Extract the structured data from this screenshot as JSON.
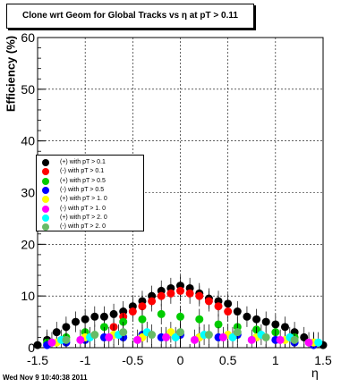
{
  "timestamp": "Wed Nov  9 10:40:38 2011",
  "chart_data": {
    "type": "scatter",
    "title": "Clone wrt Geom for Global Tracks vs   η at pT > 0.11",
    "xlabel": "η",
    "ylabel": "Efficiency (%)",
    "xlim": [
      -1.5,
      1.5
    ],
    "ylim": [
      0,
      60
    ],
    "xticks": [
      "-1.5",
      "-1",
      "-0.5",
      "0",
      "0.5",
      "1",
      "1.5"
    ],
    "yticks": [
      "0",
      "10",
      "20",
      "30",
      "40",
      "50",
      "60"
    ],
    "grid": true,
    "legend_position": "left-middle",
    "series": [
      {
        "name": "(+) with pT > 0.1",
        "color": "#000000",
        "x": [
          -1.5,
          -1.4,
          -1.3,
          -1.2,
          -1.1,
          -1.0,
          -0.9,
          -0.8,
          -0.7,
          -0.6,
          -0.5,
          -0.4,
          -0.3,
          -0.2,
          -0.1,
          0.0,
          0.1,
          0.2,
          0.3,
          0.4,
          0.5,
          0.6,
          0.7,
          0.8,
          0.9,
          1.0,
          1.1,
          1.2,
          1.3,
          1.4,
          1.5
        ],
        "y": [
          0.5,
          1.5,
          3.0,
          4.0,
          5.0,
          5.5,
          6.0,
          6.0,
          6.5,
          7.0,
          8.0,
          9.0,
          10.0,
          11.0,
          11.5,
          12.0,
          11.5,
          10.5,
          9.5,
          9.0,
          8.5,
          7.0,
          6.0,
          5.5,
          5.0,
          4.5,
          4.0,
          3.0,
          2.0,
          1.0,
          0.5
        ]
      },
      {
        "name": "(-) with pT > 0.1",
        "color": "#ff0000",
        "x": [
          -0.7,
          -0.6,
          -0.5,
          -0.4,
          -0.3,
          -0.2,
          -0.1,
          0.0,
          0.1,
          0.2,
          0.3,
          0.4,
          0.5
        ],
        "y": [
          4.0,
          6.0,
          7.0,
          8.0,
          9.0,
          10.0,
          10.5,
          11.0,
          10.5,
          10.0,
          9.0,
          8.0,
          7.0
        ]
      },
      {
        "name": "(+) with pT > 0.5",
        "color": "#00cc00",
        "x": [
          -1.4,
          -1.2,
          -1.0,
          -0.8,
          -0.6,
          -0.4,
          -0.2,
          0.0,
          0.2,
          0.4,
          0.6,
          0.8,
          1.0,
          1.2,
          1.4
        ],
        "y": [
          1.0,
          2.0,
          3.0,
          4.0,
          5.0,
          5.5,
          6.5,
          6.0,
          5.5,
          4.5,
          4.0,
          3.5,
          3.0,
          2.0,
          1.0
        ]
      },
      {
        "name": "(-) with pT > 0.5",
        "color": "#0000ff",
        "x": [
          -1.4,
          -1.2,
          -1.0,
          -0.8,
          -0.6,
          -0.4,
          -0.2,
          0.0,
          0.2,
          0.4,
          0.6,
          0.8,
          1.0,
          1.2,
          1.4
        ],
        "y": [
          0.5,
          1.0,
          1.5,
          2.0,
          2.0,
          2.5,
          2.0,
          2.5,
          2.0,
          2.0,
          2.5,
          2.0,
          1.5,
          1.0,
          0.5
        ]
      },
      {
        "name": "(+) with pT > 1. 0",
        "color": "#ffff00",
        "x": [
          -1.3,
          -1.0,
          -0.7,
          -0.4,
          -0.1,
          0.2,
          0.5,
          0.8,
          1.1,
          1.4
        ],
        "y": [
          1.0,
          2.0,
          2.5,
          2.0,
          3.0,
          2.0,
          2.5,
          2.0,
          1.5,
          1.0
        ]
      },
      {
        "name": "(-) with pT > 1. 0",
        "color": "#ff00ff",
        "x": [
          -1.35,
          -1.05,
          -0.75,
          -0.45,
          -0.15,
          0.15,
          0.45,
          0.75,
          1.05,
          1.35
        ],
        "y": [
          1.0,
          1.5,
          2.0,
          1.5,
          2.0,
          1.5,
          2.0,
          1.5,
          1.5,
          1.0
        ]
      },
      {
        "name": "(+) with pT > 2. 0",
        "color": "#00ffff",
        "x": [
          -1.25,
          -0.95,
          -0.65,
          -0.35,
          -0.05,
          0.25,
          0.55,
          0.85,
          1.15,
          1.45
        ],
        "y": [
          1.5,
          2.0,
          2.5,
          3.0,
          2.0,
          2.5,
          2.0,
          2.5,
          2.0,
          1.0
        ]
      },
      {
        "name": "(-) with pT > 2. 0",
        "color": "#66bb66",
        "x": [
          -1.2,
          -0.9,
          -0.6,
          -0.3,
          0.0,
          0.3,
          0.6,
          0.9,
          1.2
        ],
        "y": [
          1.5,
          2.5,
          3.0,
          2.5,
          3.0,
          2.5,
          3.0,
          2.0,
          1.5
        ]
      }
    ]
  }
}
